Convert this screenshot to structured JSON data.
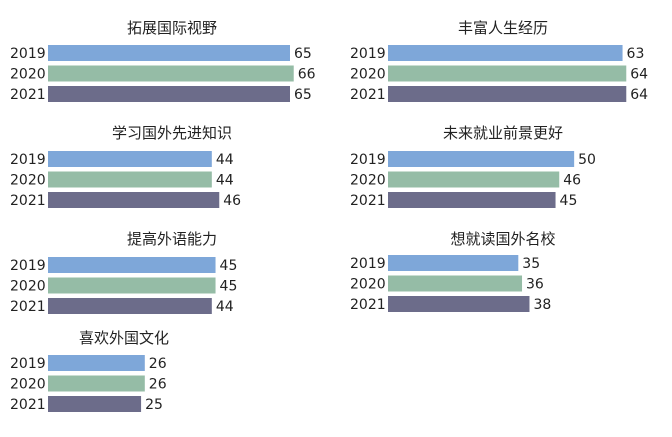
{
  "colors": {
    "2019": "#7ea7d9",
    "2020": "#95bca6",
    "2021": "#6c6c8a"
  },
  "chart_data": [
    {
      "type": "bar",
      "orientation": "horizontal",
      "title": "拓展国际视野",
      "categories": [
        "2019",
        "2020",
        "2021"
      ],
      "values": [
        65,
        66,
        65
      ]
    },
    {
      "type": "bar",
      "orientation": "horizontal",
      "title": "丰富人生经历",
      "categories": [
        "2019",
        "2020",
        "2021"
      ],
      "values": [
        63,
        64,
        64
      ]
    },
    {
      "type": "bar",
      "orientation": "horizontal",
      "title": "学习国外先进知识",
      "categories": [
        "2019",
        "2020",
        "2021"
      ],
      "values": [
        44,
        44,
        46
      ]
    },
    {
      "type": "bar",
      "orientation": "horizontal",
      "title": "未来就业前景更好",
      "categories": [
        "2019",
        "2020",
        "2021"
      ],
      "values": [
        50,
        46,
        45
      ]
    },
    {
      "type": "bar",
      "orientation": "horizontal",
      "title": "提高外语能力",
      "categories": [
        "2019",
        "2020",
        "2021"
      ],
      "values": [
        45,
        45,
        44
      ]
    },
    {
      "type": "bar",
      "orientation": "horizontal",
      "title": "想就读国外名校",
      "categories": [
        "2019",
        "2020",
        "2021"
      ],
      "values": [
        35,
        36,
        38
      ]
    },
    {
      "type": "bar",
      "orientation": "horizontal",
      "title": "喜欢外国文化",
      "categories": [
        "2019",
        "2020",
        "2021"
      ],
      "values": [
        26,
        26,
        25
      ]
    }
  ]
}
